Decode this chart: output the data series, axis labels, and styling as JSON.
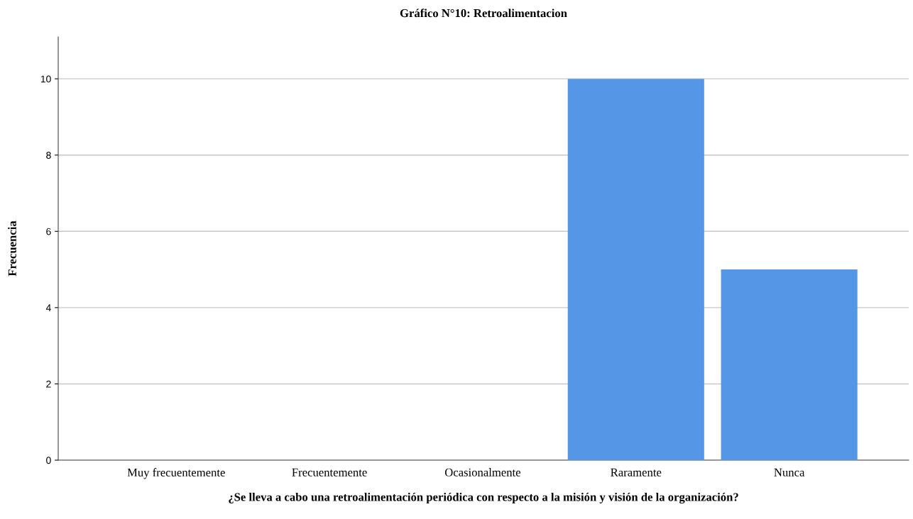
{
  "chart_data": {
    "type": "bar",
    "title": "Gráfico N°10: Retroalimentacion",
    "xlabel": "¿Se lleva a cabo una retroalimentación periódica con respecto a la misión y visión de la organización?",
    "ylabel": "Frecuencia",
    "categories": [
      "Muy frecuentemente",
      "Frecuentemente",
      "Ocasionalmente",
      "Raramente",
      "Nunca"
    ],
    "values": [
      0,
      0,
      0,
      10,
      5
    ],
    "color": "#5596e6",
    "ylim": [
      0,
      11.1
    ],
    "yticks": [
      0,
      2,
      4,
      6,
      8,
      10
    ],
    "grid": "y"
  }
}
